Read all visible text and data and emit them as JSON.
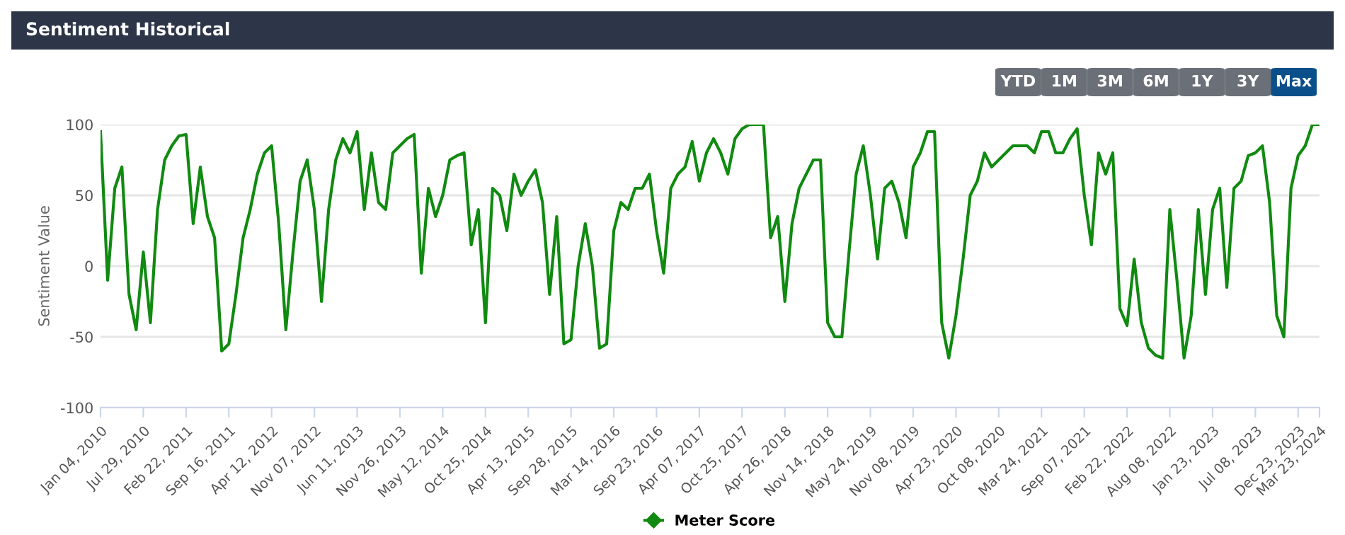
{
  "chart_data": {
    "type": "line",
    "title": "Sentiment Historical",
    "ylabel": "Sentiment Value",
    "annotations": [
      "YTD",
      "1M",
      "3M",
      "6M",
      "1Y",
      "3Y",
      "Max"
    ],
    "categories": [
      "Jan 04, 2010",
      null,
      null,
      null,
      null,
      null,
      "Jul 29, 2010",
      null,
      null,
      null,
      null,
      null,
      "Feb 22, 2011",
      null,
      null,
      null,
      null,
      null,
      "Sep 16, 2011",
      null,
      null,
      null,
      null,
      null,
      "Apr 12, 2012",
      null,
      null,
      null,
      null,
      null,
      "Nov 07, 2012",
      null,
      null,
      null,
      null,
      null,
      "Jun 11, 2013",
      null,
      null,
      null,
      null,
      null,
      "Nov 26, 2013",
      null,
      null,
      null,
      null,
      null,
      "May 12, 2014",
      null,
      null,
      null,
      null,
      null,
      "Oct 25, 2014",
      null,
      null,
      null,
      null,
      null,
      "Apr 13, 2015",
      null,
      null,
      null,
      null,
      null,
      "Sep 28, 2015",
      null,
      null,
      null,
      null,
      null,
      "Mar 14, 2016",
      null,
      null,
      null,
      null,
      null,
      "Sep 23, 2016",
      null,
      null,
      null,
      null,
      null,
      "Apr 07, 2017",
      null,
      null,
      null,
      null,
      null,
      "Oct 25, 2017",
      null,
      null,
      null,
      null,
      null,
      "Apr 26, 2018",
      null,
      null,
      null,
      null,
      null,
      "Nov 14, 2018",
      null,
      null,
      null,
      null,
      null,
      "May 24, 2019",
      null,
      null,
      null,
      null,
      null,
      "Nov 08, 2019",
      null,
      null,
      null,
      null,
      null,
      "Apr 23, 2020",
      null,
      null,
      null,
      null,
      null,
      "Oct 08, 2020",
      null,
      null,
      null,
      null,
      null,
      "Mar 24, 2021",
      null,
      null,
      null,
      null,
      null,
      "Sep 07, 2021",
      null,
      null,
      null,
      null,
      null,
      "Feb 22, 2022",
      null,
      null,
      null,
      null,
      null,
      "Aug 08, 2022",
      null,
      null,
      null,
      null,
      null,
      "Jan 23, 2023",
      null,
      null,
      null,
      null,
      null,
      "Jul 08, 2023",
      null,
      null,
      null,
      null,
      null,
      "Dec 23, 2023",
      null,
      null,
      "Mar 23, 2024"
    ],
    "series": [
      {
        "name": "Meter Score",
        "color": "#108a10",
        "values": [
          95,
          -10,
          55,
          70,
          -20,
          -45,
          10,
          -40,
          40,
          75,
          85,
          92,
          93,
          30,
          70,
          35,
          20,
          -60,
          -55,
          -20,
          20,
          40,
          65,
          80,
          85,
          30,
          -45,
          10,
          60,
          75,
          40,
          -25,
          40,
          75,
          90,
          80,
          95,
          40,
          80,
          45,
          40,
          80,
          85,
          90,
          93,
          -5,
          55,
          35,
          50,
          75,
          78,
          80,
          15,
          40,
          -40,
          55,
          50,
          25,
          65,
          50,
          60,
          68,
          45,
          -20,
          35,
          -55,
          -52,
          0,
          30,
          0,
          -58,
          -55,
          25,
          45,
          40,
          55,
          55,
          65,
          25,
          -5,
          55,
          65,
          70,
          88,
          60,
          80,
          90,
          80,
          65,
          90,
          97,
          100,
          100,
          100,
          20,
          35,
          -25,
          30,
          55,
          65,
          75,
          75,
          -40,
          -50,
          -50,
          10,
          65,
          85,
          50,
          5,
          55,
          60,
          45,
          20,
          70,
          80,
          95,
          95,
          -40,
          -65,
          -35,
          5,
          50,
          60,
          80,
          70,
          75,
          80,
          85,
          85,
          85,
          80,
          95,
          95,
          80,
          80,
          90,
          97,
          50,
          15,
          80,
          65,
          80,
          -30,
          -42,
          5,
          -40,
          -58,
          -63,
          -65,
          40,
          -10,
          -65,
          -35,
          40,
          -20,
          40,
          55,
          -15,
          55,
          60,
          78,
          80,
          85,
          45,
          -35,
          -50,
          55,
          78,
          85,
          100,
          100
        ]
      }
    ],
    "ylim": [
      -100,
      100
    ],
    "yticks": [
      -100,
      -50,
      0,
      50,
      100
    ],
    "grid": "y",
    "legend": "bottom",
    "marker": "none"
  }
}
